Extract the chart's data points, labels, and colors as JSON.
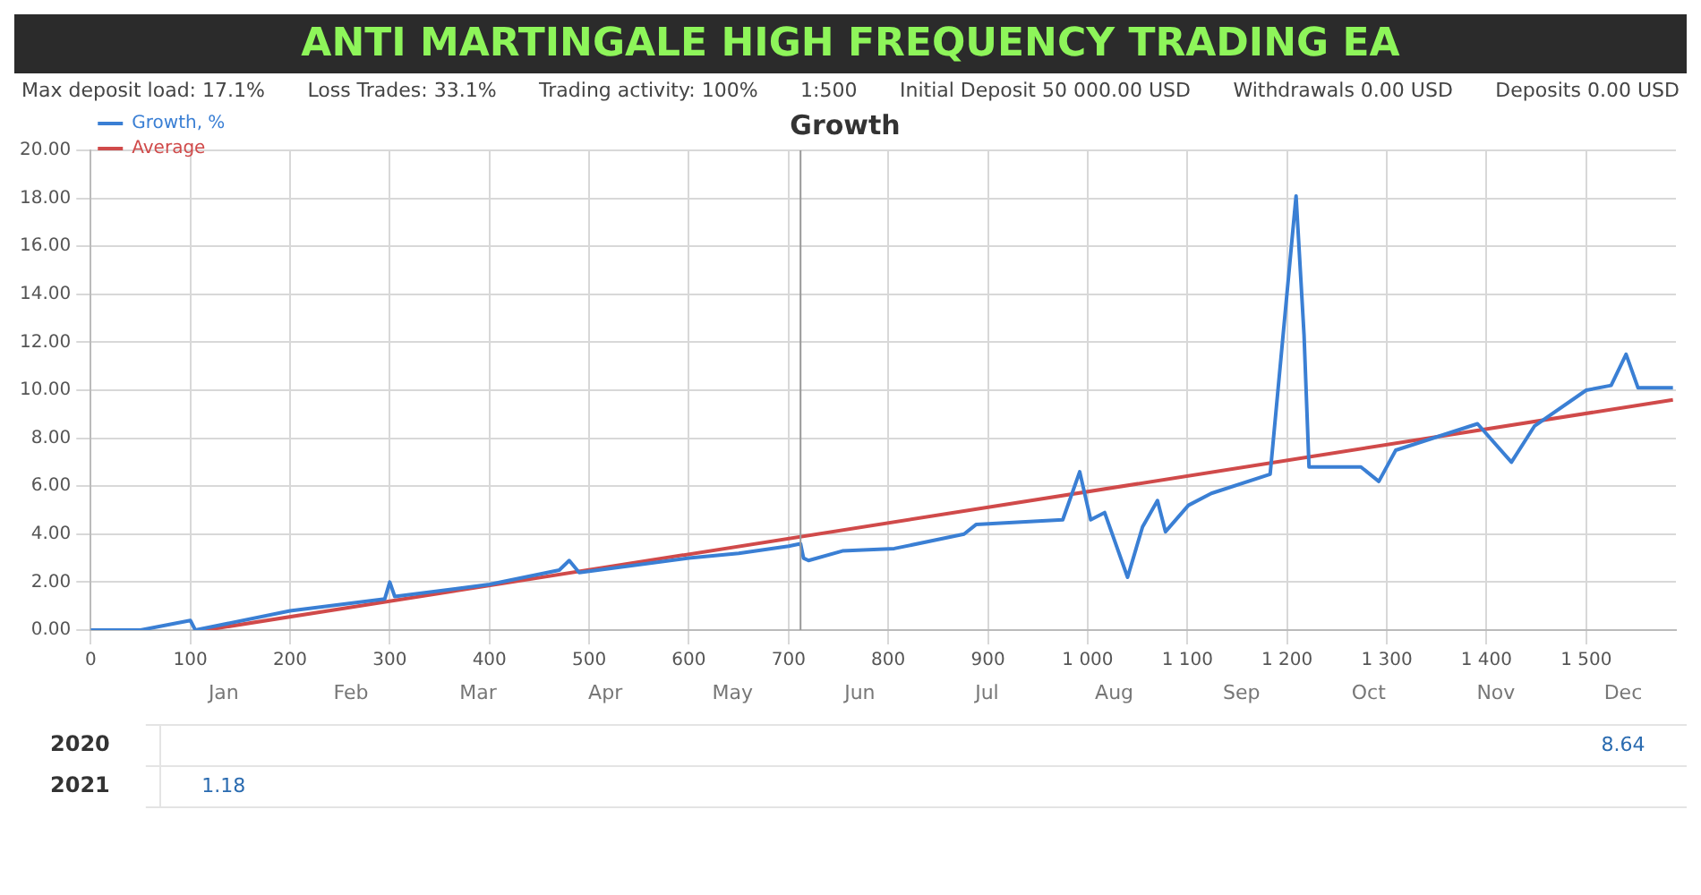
{
  "chart_data": [
    {
      "type": "line",
      "title": "Growth",
      "annotations": [
        "ANTI MARTINGALE HIGH FREQUENCY TRADING EA",
        "Max deposit load: 17.1%",
        "Loss Trades: 33.1%",
        "Trading activity: 100%",
        "1:500",
        "Initial Deposit 50 000.00 USD",
        "Withdrawals 0.00 USD",
        "Deposits 0.00 USD"
      ],
      "series": [
        {
          "name": "Growth, %",
          "color": "#3a7fd4",
          "x": [
            0,
            50,
            100,
            105,
            200,
            295,
            300,
            305,
            400,
            470,
            480,
            490,
            600,
            650,
            700,
            712,
            715,
            720,
            754,
            806,
            876,
            888,
            975,
            992,
            1003,
            1017,
            1040,
            1055,
            1070,
            1078,
            1101,
            1124,
            1183,
            1209,
            1217,
            1222,
            1274,
            1292,
            1309,
            1391,
            1425,
            1448,
            1500,
            1525,
            1540,
            1552,
            1587
          ],
          "values": [
            0,
            0,
            0.4,
            0,
            0.8,
            1.3,
            2,
            1.4,
            1.9,
            2.5,
            2.9,
            2.4,
            3,
            3.2,
            3.5,
            3.6,
            3,
            2.9,
            3.3,
            3.4,
            4,
            4.4,
            4.6,
            6.6,
            4.6,
            4.9,
            2.2,
            4.3,
            5.4,
            4.1,
            5.2,
            5.7,
            6.5,
            18.1,
            12.3,
            6.8,
            6.8,
            6.2,
            7.5,
            8.6,
            7,
            8.5,
            10,
            10.2,
            11.5,
            10.1,
            10.1
          ]
        },
        {
          "name": "Average",
          "color": "#d04a4a",
          "x": [
            115,
            1587
          ],
          "values": [
            0,
            9.6
          ]
        }
      ],
      "xlim": [
        0,
        1590
      ],
      "xticks": [
        0,
        100,
        200,
        300,
        400,
        500,
        600,
        700,
        800,
        900,
        {
          "value": 1000,
          "label": "1 000"
        },
        {
          "value": 1100,
          "label": "1 100"
        },
        {
          "value": 1200,
          "label": "1 200"
        },
        {
          "value": 1300,
          "label": "1 300"
        },
        {
          "value": 1400,
          "label": "1 400"
        },
        {
          "value": 1500,
          "label": "1 500"
        }
      ],
      "ylim": [
        0,
        20
      ],
      "yticks": [
        {
          "value": 0,
          "label": "0.00"
        },
        {
          "value": 2,
          "label": "2.00"
        },
        {
          "value": 4,
          "label": "4.00"
        },
        {
          "value": 6,
          "label": "6.00"
        },
        {
          "value": 8,
          "label": "8.00"
        },
        {
          "value": 10,
          "label": "10.00"
        },
        {
          "value": 12,
          "label": "12.00"
        },
        {
          "value": 14,
          "label": "14.00"
        },
        {
          "value": 16,
          "label": "16.00"
        },
        {
          "value": 18,
          "label": "18.00"
        },
        {
          "value": 20,
          "label": "20.00"
        }
      ],
      "ref_lines": [
        {
          "axis": "x",
          "value": 712,
          "color": "#999999"
        }
      ],
      "grid": true,
      "legend": "top left",
      "marker": "none",
      "line_style": "solid"
    },
    {
      "type": "heatmap",
      "categories": [
        "Jan",
        "Feb",
        "Mar",
        "Apr",
        "May",
        "Jun",
        "Jul",
        "Aug",
        "Sep",
        "Oct",
        "Nov",
        "Dec"
      ],
      "y_categories": [
        "2020",
        "2021"
      ],
      "cells": [
        [
          null,
          null,
          null,
          null,
          null,
          null,
          null,
          null,
          null,
          null,
          null,
          8.64
        ],
        [
          1.18,
          null,
          null,
          null,
          null,
          null,
          null,
          null,
          null,
          null,
          null,
          null
        ]
      ],
      "data_labels": true
    }
  ]
}
